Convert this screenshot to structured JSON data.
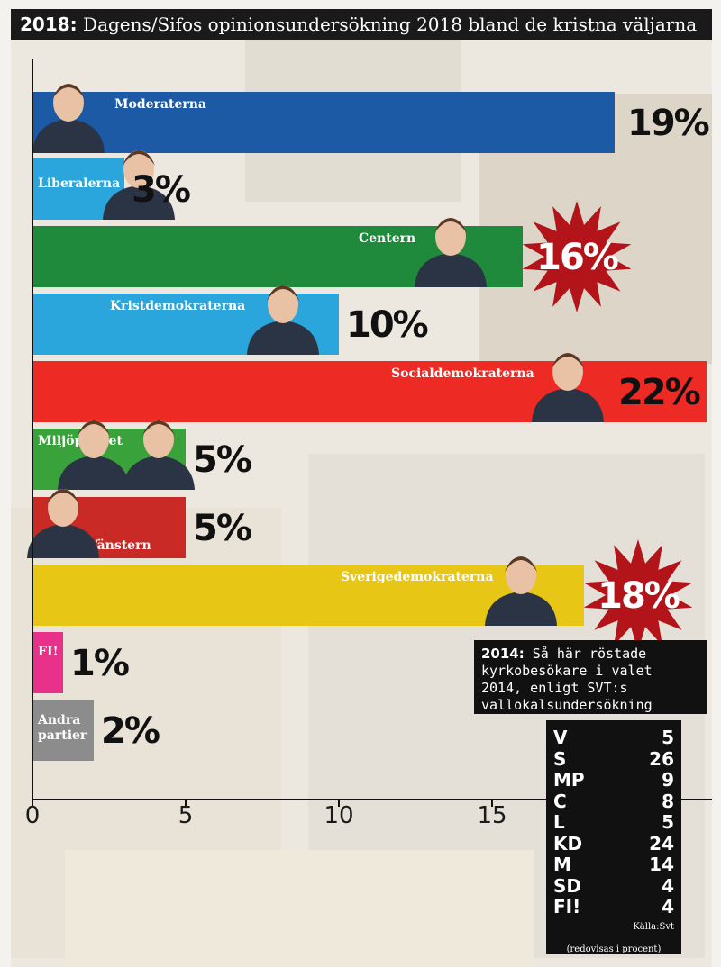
{
  "header": {
    "year": "2018:",
    "text": "Dagens/Sifos opinionsundersökning 2018 bland de kristna väljarna"
  },
  "chart_data": {
    "type": "bar",
    "orientation": "horizontal",
    "xlim": [
      0,
      22
    ],
    "xticks": [
      0,
      5,
      10,
      15
    ],
    "categories": [
      "Moderaterna",
      "Liberalerna",
      "Centern",
      "Kristdemokraterna",
      "Socialdemokraterna",
      "Miljöpartiet",
      "Vänstern",
      "Sverigedemokraterna",
      "FI!",
      "Andra partier"
    ],
    "values": [
      19,
      3,
      16,
      10,
      22,
      5,
      5,
      18,
      1,
      2
    ],
    "value_labels": [
      "19%",
      "3%",
      "16%",
      "10%",
      "22%",
      "5%",
      "5%",
      "18%",
      "1%",
      "2%"
    ],
    "colors": [
      "#1d5aa6",
      "#2aa6dc",
      "#1f8a3c",
      "#2aa6dc",
      "#ee2a24",
      "#3aa23a",
      "#c92a26",
      "#e7c616",
      "#e8318a",
      "#8c8c8c"
    ],
    "starburst_labels": [
      "Centern",
      "Sverigedemokraterna"
    ],
    "starburst_color": "#b3141a"
  },
  "results_2014": {
    "title_bold": "2014:",
    "title_text": "Så här röstade kyrkobesökare i valet 2014, enligt SVT:s vallokalsundersökning",
    "rows": [
      {
        "party": "V",
        "value": "5"
      },
      {
        "party": "S",
        "value": "26"
      },
      {
        "party": "MP",
        "value": "9"
      },
      {
        "party": "C",
        "value": "8"
      },
      {
        "party": "L",
        "value": "5"
      },
      {
        "party": "KD",
        "value": "24"
      },
      {
        "party": "M",
        "value": "14"
      },
      {
        "party": "SD",
        "value": "4"
      },
      {
        "party": "FI!",
        "value": "4"
      }
    ],
    "source": "Källa:Svt",
    "note": "(redovisas i procent)"
  }
}
